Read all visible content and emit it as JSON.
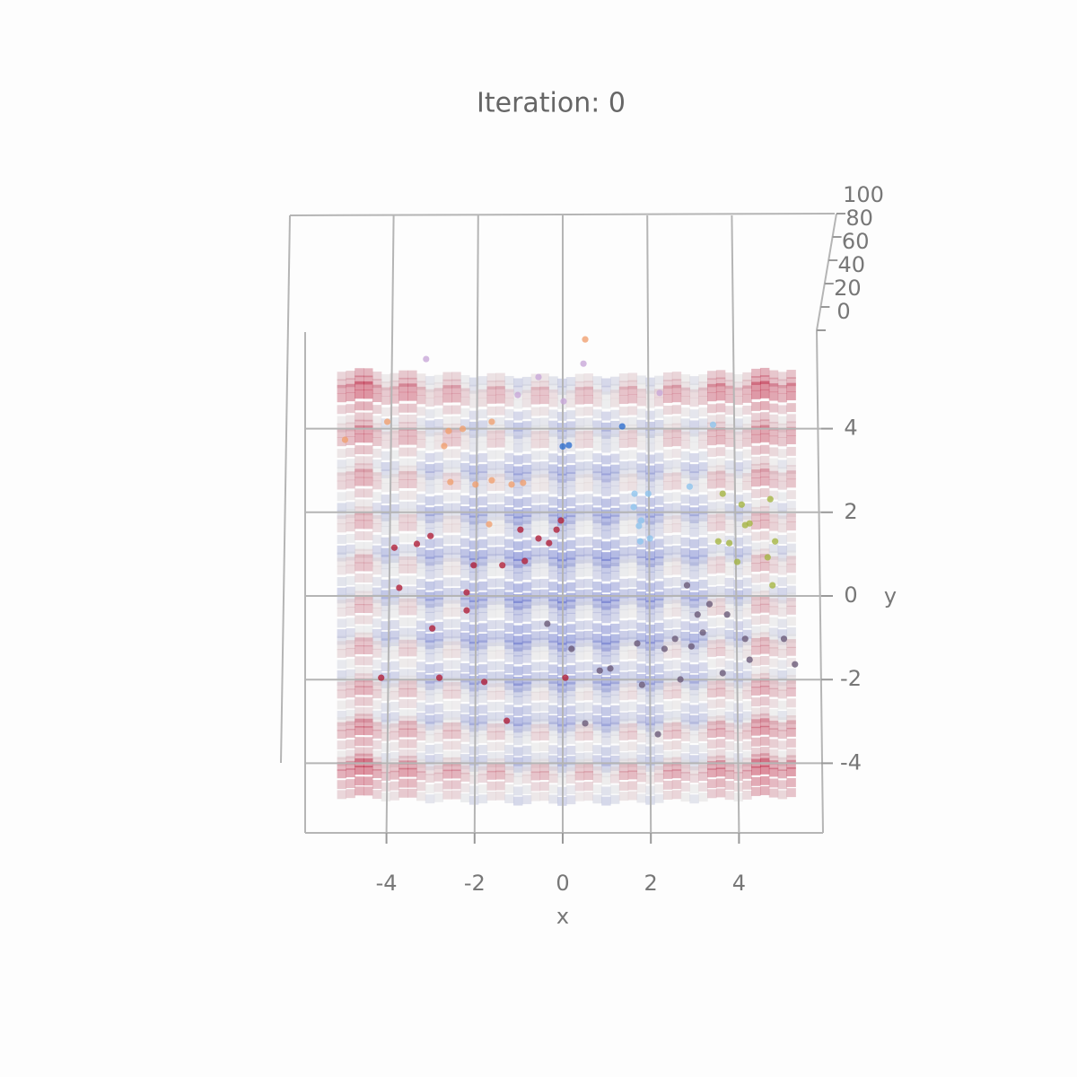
{
  "chart_data": {
    "type": "scatter3d",
    "title": "Iteration: 0",
    "xlabel": "x",
    "ylabel": "y",
    "xlim": [
      -5.12,
      5.12
    ],
    "ylim": [
      -5.12,
      5.12
    ],
    "zlim": [
      0,
      100
    ],
    "xticks": [
      -4,
      -2,
      0,
      2,
      4
    ],
    "yticks": [
      -4,
      -2,
      0,
      2,
      4
    ],
    "zticks": [
      0,
      20,
      40,
      60,
      80,
      100
    ],
    "grid": true,
    "series": [
      {
        "color": "#2f6fce",
        "x": [
          0,
          0.14,
          1.35
        ],
        "y": [
          3.66,
          3.69,
          4.14
        ]
      },
      {
        "color": "#8ec4ee",
        "x": [
          1.63,
          1.94,
          1.61,
          1.78,
          1.76,
          1.98,
          2.88,
          3.41,
          1.73
        ],
        "y": [
          2.53,
          2.53,
          2.21,
          1.89,
          1.39,
          1.46,
          2.7,
          4.18,
          1.76
        ]
      },
      {
        "color": "#a5b544",
        "x": [
          3.63,
          4.71,
          4.06,
          4.24,
          3.53,
          3.78,
          4.82,
          4.14,
          4.65,
          3.96,
          4.76
        ],
        "y": [
          2.53,
          2.4,
          2.27,
          1.82,
          1.39,
          1.35,
          1.39,
          1.78,
          1.01,
          0.9,
          0.34
        ]
      },
      {
        "color": "#b0203a",
        "x": [
          -0.96,
          -0.55,
          -0.86,
          -2.18,
          -3.31,
          -3.82,
          -3.71,
          -2.96,
          -2.18,
          -4.12,
          -2.8,
          -1.78,
          -0.14,
          -0.04,
          -0.31,
          -1.27,
          0.06,
          -1.37,
          -3.0,
          -2.02
        ],
        "y": [
          1.67,
          1.46,
          0.92,
          0.17,
          1.33,
          1.24,
          0.28,
          -0.69,
          -0.26,
          -1.87,
          -1.87,
          -1.97,
          1.67,
          1.89,
          1.35,
          -2.9,
          -1.87,
          0.82,
          1.52,
          0.82
        ]
      },
      {
        "color": "#6a5a78",
        "x": [
          3.06,
          3.33,
          2.82,
          3.73,
          2.31,
          2.55,
          2.92,
          3.18,
          1.69,
          0.2,
          1.08,
          0.84,
          2.67,
          3.63,
          4.14,
          5.02,
          5.27,
          4.24,
          1.8,
          2.16,
          0.51,
          -0.35
        ],
        "y": [
          -0.36,
          -0.11,
          0.34,
          -0.36,
          -1.18,
          -0.94,
          -1.12,
          -0.79,
          -1.05,
          -1.18,
          -1.65,
          -1.7,
          -1.91,
          -1.76,
          -0.94,
          -0.94,
          -1.55,
          -1.44,
          -2.04,
          -3.22,
          -2.96,
          -0.58
        ]
      },
      {
        "color": "#f0a070",
        "x": [
          -2.27,
          -2.59,
          -1.61,
          -2.69,
          -1.98,
          -1.61,
          -1.16,
          -2.55,
          -4.94,
          -3.98,
          0.51,
          -0.9,
          -1.67
        ],
        "y": [
          4.08,
          4.03,
          4.25,
          3.67,
          2.75,
          2.85,
          2.75,
          2.81,
          3.82,
          4.25,
          6.22,
          2.79,
          1.8
        ]
      },
      {
        "color": "#c8a8d8",
        "x": [
          0.02,
          -1.02,
          -0.55,
          0.47,
          2.2,
          -3.1
        ],
        "y": [
          4.74,
          4.89,
          5.32,
          5.64,
          4.94,
          5.75
        ]
      }
    ]
  }
}
